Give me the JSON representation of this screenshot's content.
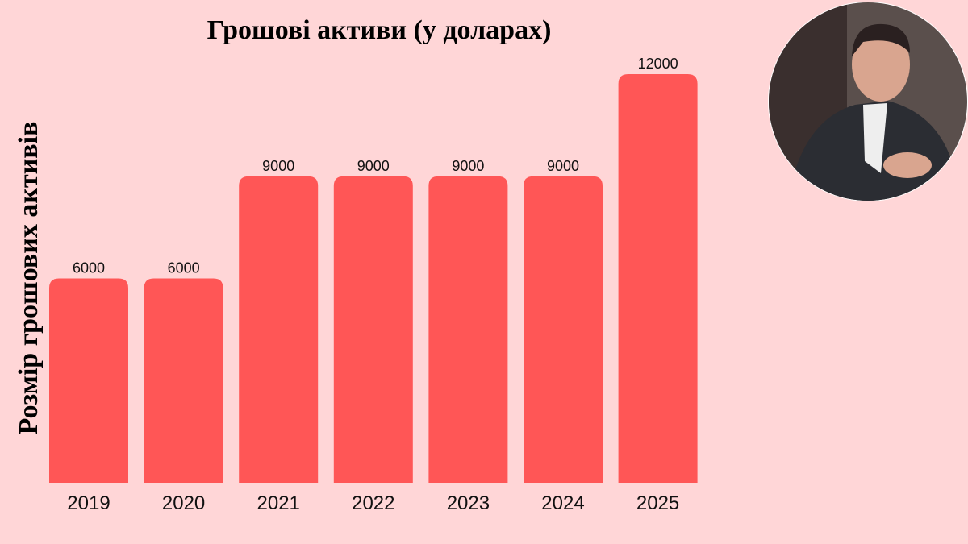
{
  "chart_data": {
    "type": "bar",
    "title": "Грошові активи (у доларах)",
    "y_label": "Розмір грошових активів",
    "categories": [
      "2019",
      "2020",
      "2021",
      "2022",
      "2023",
      "2024",
      "2025"
    ],
    "values": [
      6000,
      6000,
      9000,
      9000,
      9000,
      9000,
      12000
    ],
    "color": "#ff5656"
  }
}
